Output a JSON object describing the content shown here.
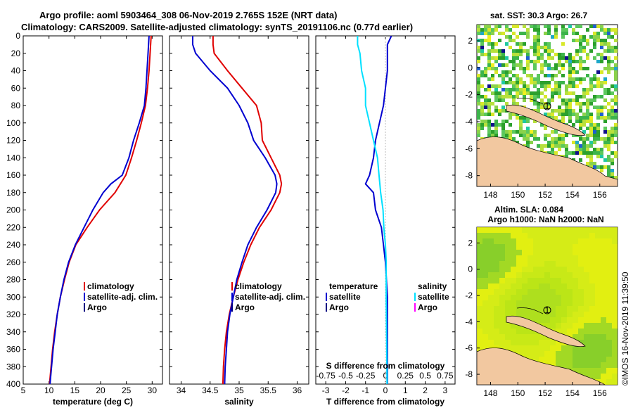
{
  "title": {
    "line1": "Argo profile: aoml 5903464_308 06-Nov-2019 2.765S 152E (NRT data)",
    "line2": "Climatology: CARS2009. Satellite-adjusted climatology: synTS_20191106.nc (0.77d earlier)"
  },
  "colors": {
    "climatology": "#e00000",
    "satellite": "#0000d0",
    "argo": "#000080",
    "sat_salinity": "#00e0ff",
    "argo_salinity": "#ff00ff"
  },
  "chart_data": [
    {
      "type": "line",
      "id": "temperature",
      "xlabel": "temperature (deg C)",
      "xlim": [
        5,
        32
      ],
      "ylim": [
        0,
        400
      ],
      "xticks": [
        "5",
        "10",
        "15",
        "20",
        "25",
        "30"
      ],
      "yticks": [
        "0",
        "20",
        "40",
        "60",
        "80",
        "100",
        "120",
        "140",
        "160",
        "180",
        "200",
        "220",
        "240",
        "260",
        "280",
        "300",
        "320",
        "340",
        "360",
        "380",
        "400"
      ],
      "legend": [
        "climatology",
        "satellite-adj. clim.",
        "Argo"
      ],
      "legend_position": "lower-right",
      "series": [
        {
          "name": "climatology",
          "color": "climatology",
          "depth": [
            0,
            20,
            40,
            60,
            80,
            100,
            120,
            140,
            160,
            180,
            200,
            220,
            240,
            260,
            280,
            300,
            320,
            340,
            360,
            380,
            400
          ],
          "values": [
            29.8,
            29.6,
            29.4,
            29.1,
            28.7,
            27.9,
            27.0,
            26.0,
            24.9,
            22.8,
            19.8,
            17.4,
            15.2,
            13.9,
            13.0,
            12.2,
            11.6,
            11.1,
            10.7,
            10.4,
            10.1
          ]
        },
        {
          "name": "satellite-adj. clim.",
          "color": "satellite",
          "depth": [
            0,
            20,
            40,
            60,
            80,
            100,
            120,
            140,
            160,
            170,
            180,
            200,
            220,
            240,
            260,
            280,
            300,
            320,
            340,
            360,
            380,
            400
          ],
          "values": [
            29.4,
            29.2,
            29.0,
            28.8,
            28.5,
            27.5,
            26.4,
            25.5,
            24.2,
            22.0,
            20.5,
            18.5,
            16.8,
            15.1,
            13.8,
            12.9,
            12.2,
            11.6,
            11.2,
            10.8,
            10.5,
            10.2
          ]
        }
      ]
    },
    {
      "type": "line",
      "id": "salinity",
      "xlabel": "salinity",
      "xlim": [
        33.8,
        36.2
      ],
      "ylim": [
        0,
        400
      ],
      "xticks": [
        "34",
        "34.5",
        "35",
        "35.5",
        "36"
      ],
      "legend": [
        "climatology",
        "satellite-adj. clim.",
        "Argo"
      ],
      "legend_position": "lower-right",
      "series": [
        {
          "name": "climatology",
          "color": "climatology",
          "depth": [
            0,
            10,
            20,
            40,
            60,
            80,
            100,
            120,
            140,
            160,
            170,
            180,
            200,
            220,
            240,
            260,
            280,
            300,
            320,
            340,
            360,
            380,
            400
          ],
          "values": [
            34.55,
            34.55,
            34.57,
            34.8,
            35.05,
            35.3,
            35.38,
            35.4,
            35.55,
            35.7,
            35.73,
            35.7,
            35.55,
            35.35,
            35.2,
            35.08,
            34.98,
            34.9,
            34.83,
            34.78,
            34.75,
            34.73,
            34.72
          ]
        },
        {
          "name": "satellite-adj. clim.",
          "color": "satellite",
          "depth": [
            0,
            10,
            20,
            40,
            60,
            80,
            100,
            120,
            140,
            160,
            170,
            180,
            200,
            220,
            240,
            260,
            280,
            300,
            320,
            340,
            360,
            380,
            400
          ],
          "values": [
            34.2,
            34.2,
            34.25,
            34.5,
            34.8,
            35.0,
            35.15,
            35.25,
            35.45,
            35.62,
            35.65,
            35.63,
            35.48,
            35.3,
            35.15,
            35.05,
            34.96,
            34.9,
            34.84,
            34.8,
            34.78,
            34.76,
            34.75
          ]
        }
      ]
    },
    {
      "type": "line",
      "id": "difference",
      "xlabel": "T difference from climatology",
      "xlabel_top": "S difference from climatology",
      "xlim": [
        -3.5,
        3.5
      ],
      "ylim": [
        0,
        400
      ],
      "xticks": [
        "-3",
        "-2",
        "-1",
        "0",
        "1",
        "2",
        "3"
      ],
      "xticks_top": [
        "-0.75",
        "-0.5",
        "-0.25",
        "0",
        "0.25",
        "0.5",
        "0.75"
      ],
      "legend_left": {
        "title": "temperature",
        "items": [
          "satellite",
          "Argo"
        ]
      },
      "legend_right": {
        "title": "salinity",
        "items": [
          "satellite",
          "Argo"
        ]
      },
      "series": [
        {
          "name": "T satellite",
          "color": "satellite",
          "depth": [
            0,
            10,
            20,
            40,
            60,
            80,
            100,
            120,
            140,
            160,
            170,
            180,
            200,
            220,
            240,
            260,
            300,
            400
          ],
          "values": [
            0.3,
            0.1,
            0.1,
            0.1,
            0.0,
            -0.1,
            -0.3,
            -0.5,
            -0.6,
            -0.8,
            -1.0,
            -0.6,
            -0.5,
            -0.2,
            -0.1,
            0.0,
            0.1,
            0.1
          ]
        },
        {
          "name": "S satellite",
          "color": "sat_salinity",
          "depth": [
            0,
            10,
            20,
            40,
            60,
            80,
            100,
            120,
            140,
            160,
            180,
            200,
            220,
            240,
            260,
            300,
            400
          ],
          "values": [
            -0.35,
            -0.35,
            -0.32,
            -0.3,
            -0.25,
            -0.25,
            -0.2,
            -0.15,
            -0.1,
            -0.08,
            -0.06,
            -0.03,
            -0.02,
            0.0,
            0.01,
            0.01,
            0.02
          ]
        }
      ]
    }
  ],
  "map_sst": {
    "title": "sat. SST: 30.3 Argo: 26.7",
    "xticks": [
      "148",
      "150",
      "152",
      "154",
      "156"
    ],
    "yticks": [
      "2",
      "0",
      "-2",
      "-4",
      "-6",
      "-8"
    ],
    "marker": "1"
  },
  "map_sla": {
    "title1": "Altim. SLA: 0.084",
    "title2": "Argo h1000: NaN h2000: NaN",
    "xticks": [
      "148",
      "150",
      "152",
      "154",
      "156"
    ],
    "yticks": [
      "2",
      "0",
      "-2",
      "-4",
      "-6",
      "-8"
    ],
    "marker": "1"
  },
  "credit": "©IMOS 16-Nov-2019 11:39:50"
}
